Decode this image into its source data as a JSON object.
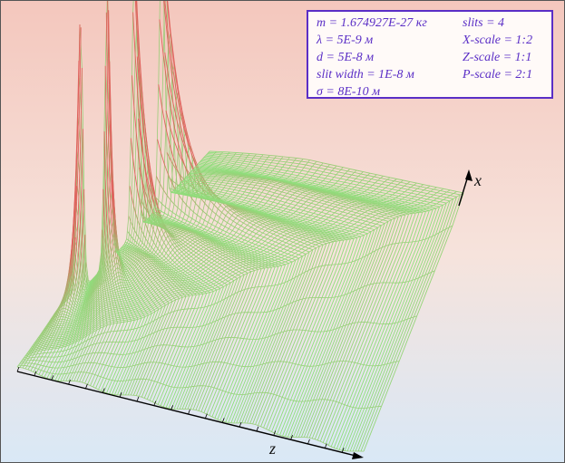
{
  "legend": {
    "left": [
      "m = 1.674927E-27 кг",
      "λ = 5E-9 м",
      "d = 5E-8 м",
      "slit width = 1E-8 м",
      "σ = 8E-10 м"
    ],
    "right": [
      "slits = 4",
      "X-scale = 1:2",
      "Z-scale = 1:1",
      "P-scale = 2:1"
    ]
  },
  "axes": {
    "x_label": "x",
    "z_label": "z"
  },
  "colors": {
    "surface_low": "#8ee07c",
    "surface_high": "#e0635e",
    "legend_accent": "#5a2ec6"
  }
}
